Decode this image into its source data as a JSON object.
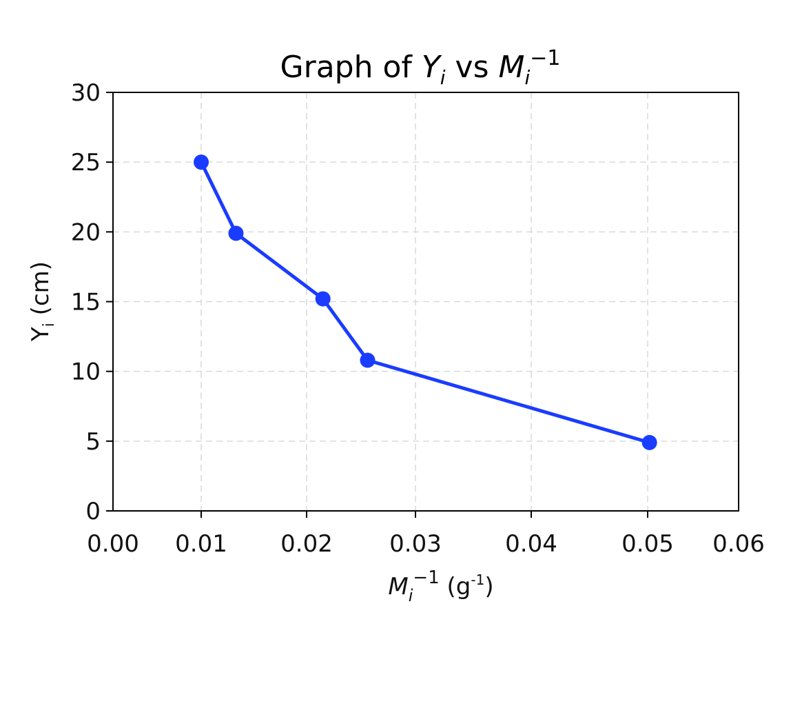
{
  "chart_data": {
    "type": "line",
    "title": "Graph of Y_i vs M_i^-1",
    "title_parts": {
      "prefix": "Graph of ",
      "y_sym": "Y",
      "y_sub": "i",
      "mid": " vs ",
      "m_sym": "M",
      "m_sub": "i",
      "m_sup": "−1"
    },
    "xlabel": "M_i^-1 (g^-1)",
    "xlabel_parts": {
      "sym": "M",
      "sub": "i",
      "sup": "−1",
      "unit_open": " (g",
      "unit_sup": "-1",
      "unit_close": ")"
    },
    "ylabel": "Y_i (cm)",
    "ylabel_parts": {
      "sym": "Y",
      "sub": "i",
      "unit": " (cm)"
    },
    "xlim": [
      0.0,
      0.06
    ],
    "ylim": [
      0,
      30
    ],
    "grid": true,
    "legend": null,
    "x_ticks": [
      "0.00",
      "0.01",
      "0.02",
      "0.03",
      "0.04",
      "0.05",
      "0.06"
    ],
    "y_ticks": [
      "0",
      "5",
      "10",
      "15",
      "20",
      "25",
      "30"
    ],
    "series": [
      {
        "name": "Y_i",
        "color": "#1a3cff",
        "marker": "circle",
        "x": [
          0.01,
          0.0133,
          0.0215,
          0.0256,
          0.0502
        ],
        "y": [
          25.0,
          19.9,
          15.2,
          10.8,
          4.9
        ]
      }
    ]
  },
  "colors": {
    "line": "#1a3cff",
    "grid": "#d9d9d9",
    "axis": "#000000"
  }
}
